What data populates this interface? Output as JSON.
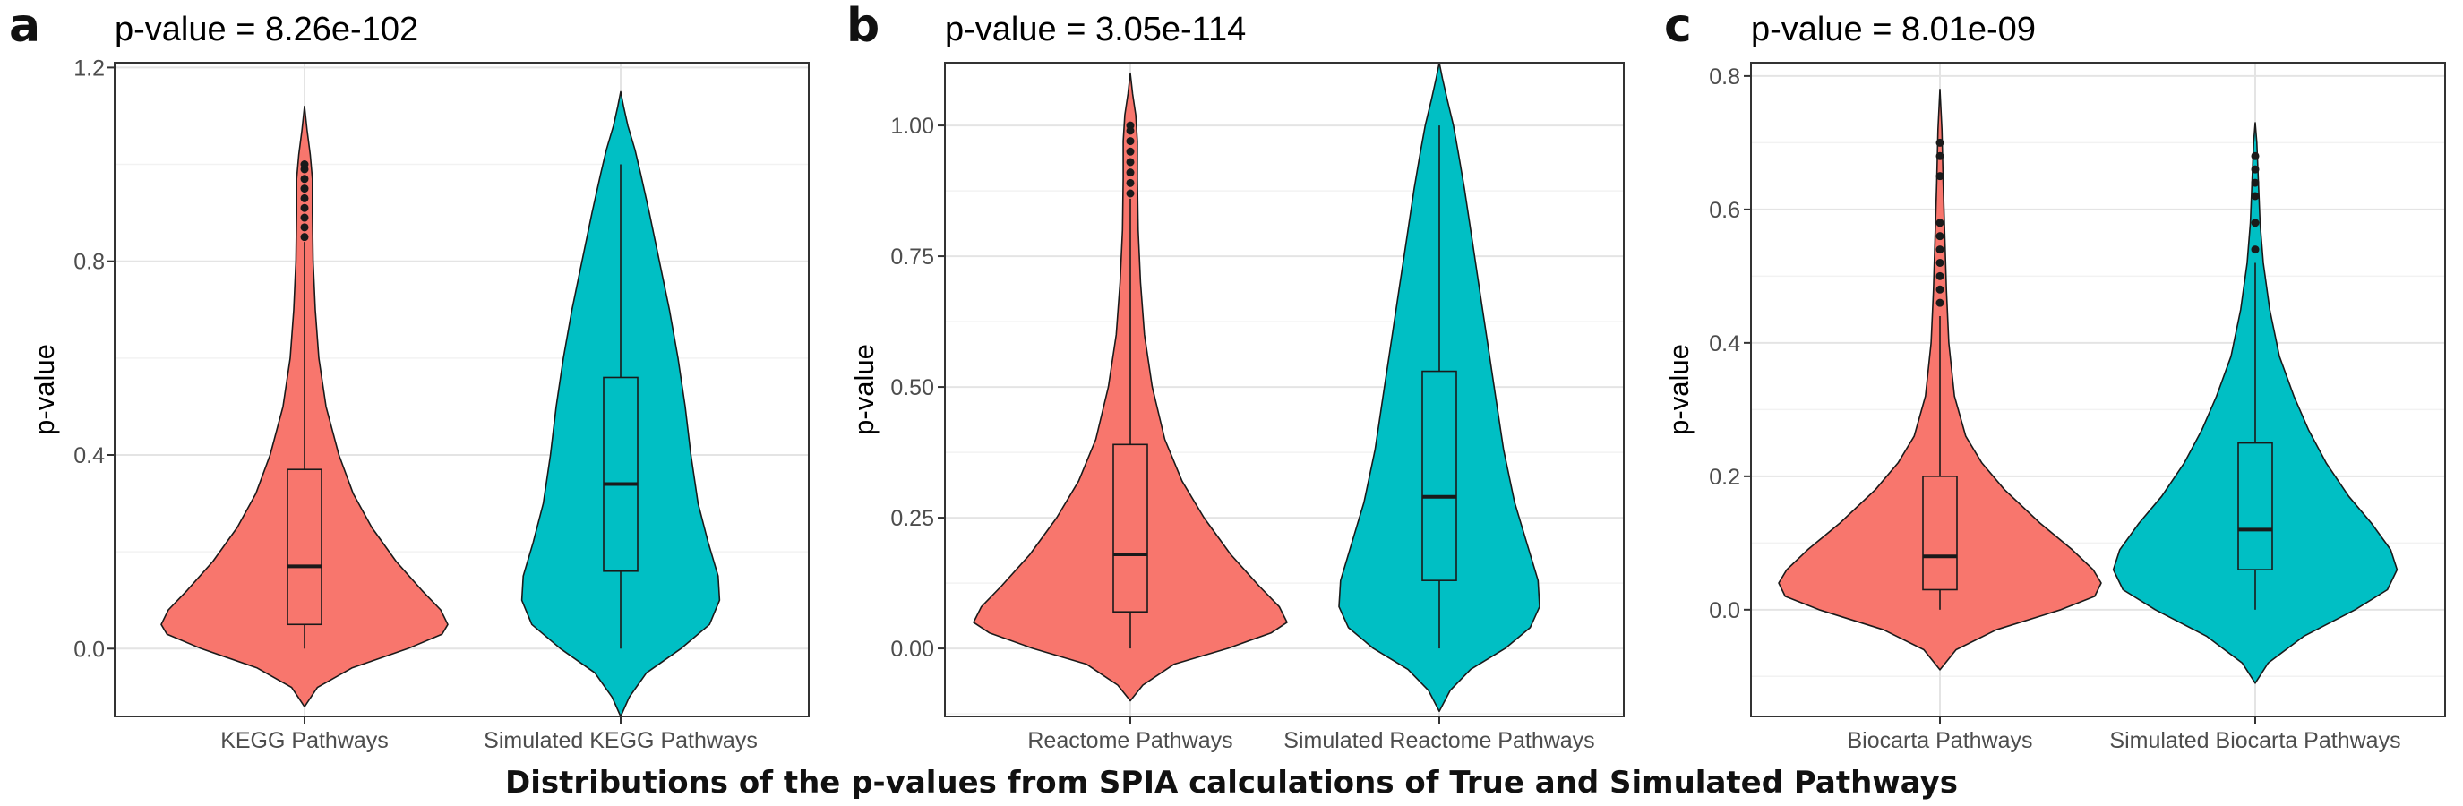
{
  "caption": "Distributions of the p-values from SPIA calculations of True and Simulated Pathways",
  "colors": {
    "true": "#F8766D",
    "simulated": "#00BFC4",
    "outline": "#1a1a1a",
    "grid_major": "#e4e4e4",
    "grid_minor": "#f2f2f2",
    "frame": "#333333"
  },
  "chart_data": [
    {
      "type": "violin",
      "panel": "a",
      "title": "p-value = 8.26e-102",
      "xlabel": "",
      "ylabel": "p-value",
      "ylim": [
        -0.14,
        1.21
      ],
      "yticks": [
        0.0,
        0.4,
        0.8,
        1.2
      ],
      "ytick_labels": [
        "0.0",
        "0.4",
        "0.8",
        "1.2"
      ],
      "categories": [
        "KEGG Pathways",
        "Simulated KEGG Pathways"
      ],
      "series": [
        {
          "category": "KEGG Pathways",
          "color": "#F8766D",
          "violin_extent": [
            -0.12,
            1.12
          ],
          "box": {
            "min": 0.0,
            "q1": 0.05,
            "median": 0.17,
            "q3": 0.37,
            "max": 0.84
          },
          "outliers": [
            0.85,
            0.87,
            0.89,
            0.91,
            0.93,
            0.95,
            0.97,
            0.99,
            1.0
          ],
          "density": [
            [
              -0.12,
              0.0
            ],
            [
              -0.08,
              0.09
            ],
            [
              -0.04,
              0.33
            ],
            [
              0.0,
              0.72
            ],
            [
              0.03,
              0.96
            ],
            [
              0.05,
              1.0
            ],
            [
              0.08,
              0.95
            ],
            [
              0.12,
              0.82
            ],
            [
              0.18,
              0.64
            ],
            [
              0.25,
              0.47
            ],
            [
              0.32,
              0.34
            ],
            [
              0.4,
              0.24
            ],
            [
              0.5,
              0.15
            ],
            [
              0.6,
              0.1
            ],
            [
              0.7,
              0.075
            ],
            [
              0.8,
              0.06
            ],
            [
              0.9,
              0.055
            ],
            [
              0.97,
              0.055
            ],
            [
              1.02,
              0.04
            ],
            [
              1.07,
              0.018
            ],
            [
              1.12,
              0.0
            ]
          ]
        },
        {
          "category": "Simulated KEGG Pathways",
          "color": "#00BFC4",
          "violin_extent": [
            -0.14,
            1.15
          ],
          "box": {
            "min": 0.0,
            "q1": 0.16,
            "median": 0.34,
            "q3": 0.56,
            "max": 1.0
          },
          "outliers": [],
          "density": [
            [
              -0.14,
              0.0
            ],
            [
              -0.1,
              0.06
            ],
            [
              -0.05,
              0.18
            ],
            [
              0.0,
              0.42
            ],
            [
              0.05,
              0.62
            ],
            [
              0.1,
              0.69
            ],
            [
              0.15,
              0.68
            ],
            [
              0.22,
              0.61
            ],
            [
              0.3,
              0.54
            ],
            [
              0.4,
              0.49
            ],
            [
              0.5,
              0.45
            ],
            [
              0.6,
              0.4
            ],
            [
              0.7,
              0.34
            ],
            [
              0.8,
              0.27
            ],
            [
              0.9,
              0.2
            ],
            [
              0.98,
              0.14
            ],
            [
              1.03,
              0.1
            ],
            [
              1.08,
              0.05
            ],
            [
              1.12,
              0.02
            ],
            [
              1.15,
              0.0
            ]
          ]
        }
      ]
    },
    {
      "type": "violin",
      "panel": "b",
      "title": "p-value = 3.05e-114",
      "xlabel": "",
      "ylabel": "p-value",
      "ylim": [
        -0.13,
        1.12
      ],
      "yticks": [
        0.0,
        0.25,
        0.5,
        0.75,
        1.0
      ],
      "ytick_labels": [
        "0.00",
        "0.25",
        "0.50",
        "0.75",
        "1.00"
      ],
      "categories": [
        "Reactome Pathways",
        "Simulated Reactome Pathways"
      ],
      "series": [
        {
          "category": "Reactome Pathways",
          "color": "#F8766D",
          "violin_extent": [
            -0.1,
            1.1
          ],
          "box": {
            "min": 0.0,
            "q1": 0.07,
            "median": 0.18,
            "q3": 0.39,
            "max": 0.86
          },
          "outliers": [
            0.87,
            0.89,
            0.91,
            0.93,
            0.95,
            0.97,
            0.99,
            1.0
          ],
          "density": [
            [
              -0.1,
              0.0
            ],
            [
              -0.07,
              0.08
            ],
            [
              -0.03,
              0.28
            ],
            [
              0.0,
              0.62
            ],
            [
              0.03,
              0.9
            ],
            [
              0.05,
              1.0
            ],
            [
              0.08,
              0.95
            ],
            [
              0.12,
              0.82
            ],
            [
              0.18,
              0.64
            ],
            [
              0.25,
              0.47
            ],
            [
              0.32,
              0.33
            ],
            [
              0.4,
              0.22
            ],
            [
              0.5,
              0.14
            ],
            [
              0.6,
              0.09
            ],
            [
              0.7,
              0.065
            ],
            [
              0.8,
              0.05
            ],
            [
              0.9,
              0.045
            ],
            [
              0.97,
              0.045
            ],
            [
              1.02,
              0.035
            ],
            [
              1.06,
              0.015
            ],
            [
              1.1,
              0.0
            ]
          ]
        },
        {
          "category": "Simulated Reactome Pathways",
          "color": "#00BFC4",
          "violin_extent": [
            -0.12,
            1.12
          ],
          "box": {
            "min": 0.0,
            "q1": 0.13,
            "median": 0.29,
            "q3": 0.53,
            "max": 1.0
          },
          "outliers": [],
          "density": [
            [
              -0.12,
              0.0
            ],
            [
              -0.08,
              0.07
            ],
            [
              -0.04,
              0.2
            ],
            [
              0.0,
              0.42
            ],
            [
              0.04,
              0.58
            ],
            [
              0.08,
              0.64
            ],
            [
              0.13,
              0.63
            ],
            [
              0.2,
              0.56
            ],
            [
              0.28,
              0.48
            ],
            [
              0.38,
              0.41
            ],
            [
              0.48,
              0.36
            ],
            [
              0.58,
              0.31
            ],
            [
              0.68,
              0.26
            ],
            [
              0.78,
              0.21
            ],
            [
              0.88,
              0.16
            ],
            [
              0.95,
              0.12
            ],
            [
              1.0,
              0.09
            ],
            [
              1.05,
              0.05
            ],
            [
              1.09,
              0.02
            ],
            [
              1.12,
              0.0
            ]
          ]
        }
      ]
    },
    {
      "type": "violin",
      "panel": "c",
      "title": "p-value = 8.01e-09",
      "xlabel": "",
      "ylabel": "p-value",
      "ylim": [
        -0.16,
        0.82
      ],
      "yticks": [
        0.0,
        0.2,
        0.4,
        0.6,
        0.8
      ],
      "ytick_labels": [
        "0.0",
        "0.2",
        "0.4",
        "0.6",
        "0.8"
      ],
      "categories": [
        "Biocarta Pathways",
        "Simulated Biocarta Pathways"
      ],
      "series": [
        {
          "category": "Biocarta Pathways",
          "color": "#F8766D",
          "violin_extent": [
            -0.09,
            0.78
          ],
          "box": {
            "min": 0.0,
            "q1": 0.03,
            "median": 0.08,
            "q3": 0.2,
            "max": 0.44
          },
          "outliers": [
            0.46,
            0.48,
            0.5,
            0.52,
            0.54,
            0.56,
            0.58,
            0.65,
            0.68,
            0.7
          ],
          "density": [
            [
              -0.09,
              0.0
            ],
            [
              -0.06,
              0.1
            ],
            [
              -0.03,
              0.35
            ],
            [
              0.0,
              0.75
            ],
            [
              0.02,
              0.96
            ],
            [
              0.04,
              1.0
            ],
            [
              0.06,
              0.95
            ],
            [
              0.09,
              0.82
            ],
            [
              0.13,
              0.62
            ],
            [
              0.18,
              0.4
            ],
            [
              0.22,
              0.26
            ],
            [
              0.26,
              0.16
            ],
            [
              0.32,
              0.09
            ],
            [
              0.4,
              0.055
            ],
            [
              0.48,
              0.04
            ],
            [
              0.56,
              0.03
            ],
            [
              0.64,
              0.02
            ],
            [
              0.72,
              0.012
            ],
            [
              0.78,
              0.0
            ]
          ]
        },
        {
          "category": "Simulated Biocarta Pathways",
          "color": "#00BFC4",
          "violin_extent": [
            -0.11,
            0.73
          ],
          "box": {
            "min": 0.0,
            "q1": 0.06,
            "median": 0.12,
            "q3": 0.25,
            "max": 0.52
          },
          "outliers": [
            0.54,
            0.58,
            0.62,
            0.64,
            0.66,
            0.68
          ],
          "density": [
            [
              -0.11,
              0.0
            ],
            [
              -0.08,
              0.08
            ],
            [
              -0.04,
              0.3
            ],
            [
              0.0,
              0.62
            ],
            [
              0.03,
              0.82
            ],
            [
              0.06,
              0.88
            ],
            [
              0.09,
              0.84
            ],
            [
              0.13,
              0.72
            ],
            [
              0.17,
              0.58
            ],
            [
              0.22,
              0.44
            ],
            [
              0.27,
              0.33
            ],
            [
              0.32,
              0.24
            ],
            [
              0.38,
              0.15
            ],
            [
              0.45,
              0.09
            ],
            [
              0.52,
              0.05
            ],
            [
              0.58,
              0.03
            ],
            [
              0.64,
              0.02
            ],
            [
              0.7,
              0.01
            ],
            [
              0.73,
              0.0
            ]
          ]
        }
      ]
    }
  ]
}
